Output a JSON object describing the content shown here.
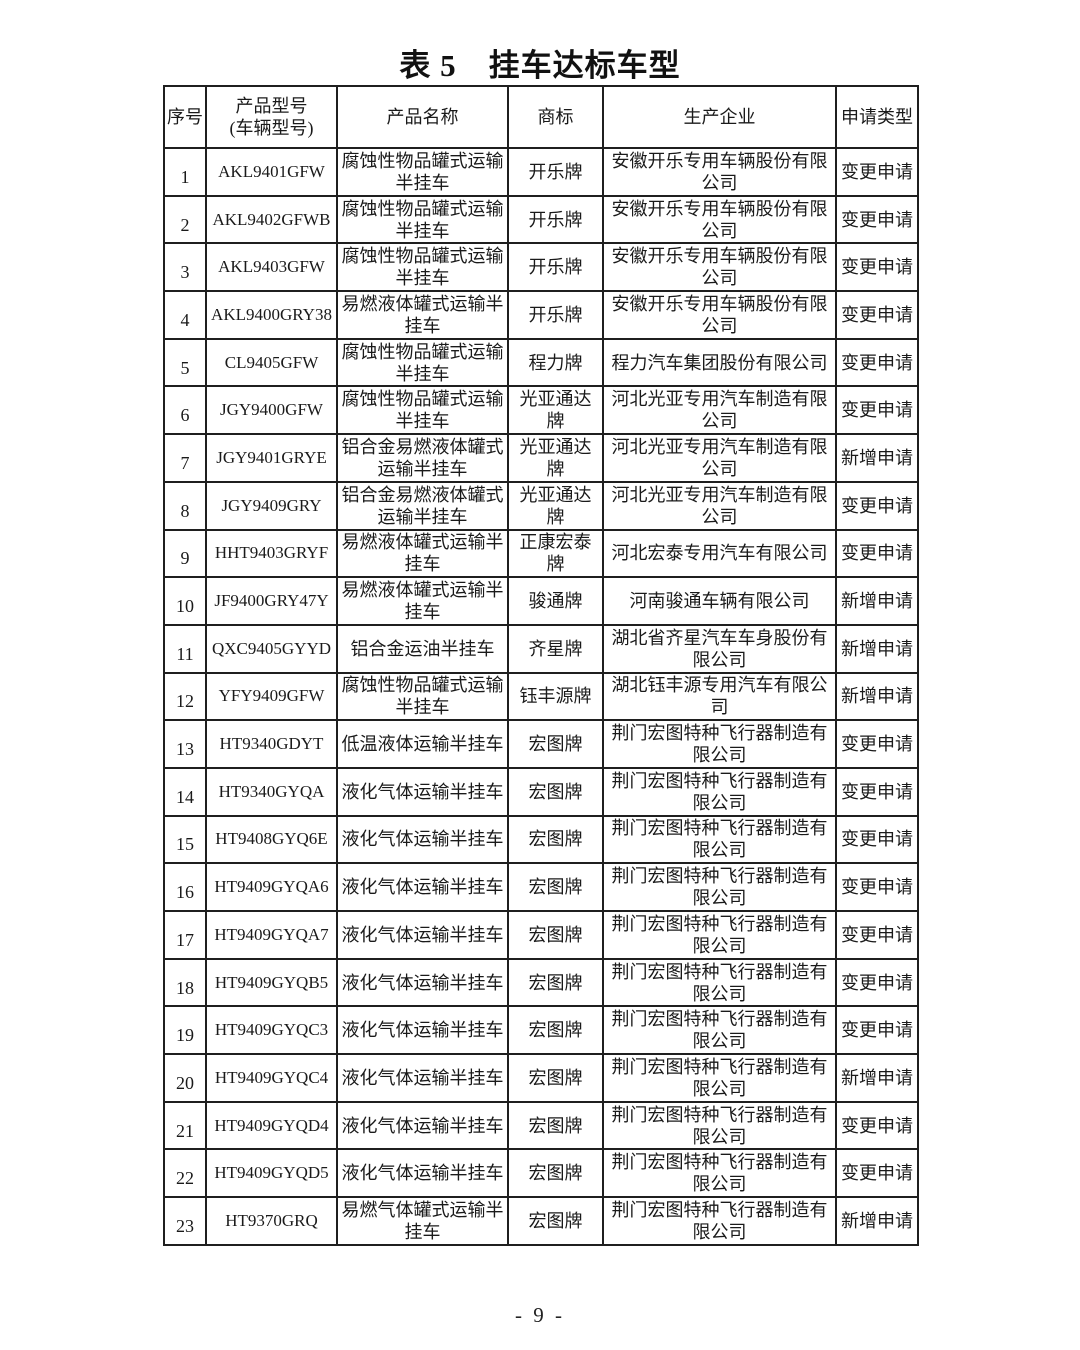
{
  "document": {
    "title": "表 5　挂车达标车型",
    "page_number": "- 9 -"
  },
  "table": {
    "headers": [
      "序号",
      "产品型号\n(车辆型号)",
      "产品名称",
      "商标",
      "生产企业",
      "申请类型"
    ],
    "rows": [
      {
        "no": "1",
        "model": "AKL9401GFW",
        "name": "腐蚀性物品罐式运输半挂车",
        "brand": "开乐牌",
        "manufacturer": "安徽开乐专用车辆股份有限公司",
        "apply_type": "变更申请"
      },
      {
        "no": "2",
        "model": "AKL9402GFWB",
        "name": "腐蚀性物品罐式运输半挂车",
        "brand": "开乐牌",
        "manufacturer": "安徽开乐专用车辆股份有限公司",
        "apply_type": "变更申请"
      },
      {
        "no": "3",
        "model": "AKL9403GFW",
        "name": "腐蚀性物品罐式运输半挂车",
        "brand": "开乐牌",
        "manufacturer": "安徽开乐专用车辆股份有限公司",
        "apply_type": "变更申请"
      },
      {
        "no": "4",
        "model": "AKL9400GRY38",
        "name": "易燃液体罐式运输半挂车",
        "brand": "开乐牌",
        "manufacturer": "安徽开乐专用车辆股份有限公司",
        "apply_type": "变更申请"
      },
      {
        "no": "5",
        "model": "CL9405GFW",
        "name": "腐蚀性物品罐式运输半挂车",
        "brand": "程力牌",
        "manufacturer": "程力汽车集团股份有限公司",
        "apply_type": "变更申请"
      },
      {
        "no": "6",
        "model": "JGY9400GFW",
        "name": "腐蚀性物品罐式运输半挂车",
        "brand": "光亚通达牌",
        "manufacturer": "河北光亚专用汽车制造有限公司",
        "apply_type": "变更申请"
      },
      {
        "no": "7",
        "model": "JGY9401GRYE",
        "name": "铝合金易燃液体罐式运输半挂车",
        "brand": "光亚通达牌",
        "manufacturer": "河北光亚专用汽车制造有限公司",
        "apply_type": "新增申请"
      },
      {
        "no": "8",
        "model": "JGY9409GRY",
        "name": "铝合金易燃液体罐式运输半挂车",
        "brand": "光亚通达牌",
        "manufacturer": "河北光亚专用汽车制造有限公司",
        "apply_type": "变更申请"
      },
      {
        "no": "9",
        "model": "HHT9403GRYF",
        "name": "易燃液体罐式运输半挂车",
        "brand": "正康宏泰牌",
        "manufacturer": "河北宏泰专用汽车有限公司",
        "apply_type": "变更申请"
      },
      {
        "no": "10",
        "model": "JF9400GRY47Y",
        "name": "易燃液体罐式运输半挂车",
        "brand": "骏通牌",
        "manufacturer": "河南骏通车辆有限公司",
        "apply_type": "新增申请"
      },
      {
        "no": "11",
        "model": "QXC9405GYYD",
        "name": "铝合金运油半挂车",
        "brand": "齐星牌",
        "manufacturer": "湖北省齐星汽车车身股份有限公司",
        "apply_type": "新增申请"
      },
      {
        "no": "12",
        "model": "YFY9409GFW",
        "name": "腐蚀性物品罐式运输半挂车",
        "brand": "钰丰源牌",
        "manufacturer": "湖北钰丰源专用汽车有限公司",
        "apply_type": "新增申请"
      },
      {
        "no": "13",
        "model": "HT9340GDYT",
        "name": "低温液体运输半挂车",
        "brand": "宏图牌",
        "manufacturer": "荆门宏图特种飞行器制造有限公司",
        "apply_type": "变更申请"
      },
      {
        "no": "14",
        "model": "HT9340GYQA",
        "name": "液化气体运输半挂车",
        "brand": "宏图牌",
        "manufacturer": "荆门宏图特种飞行器制造有限公司",
        "apply_type": "变更申请"
      },
      {
        "no": "15",
        "model": "HT9408GYQ6E",
        "name": "液化气体运输半挂车",
        "brand": "宏图牌",
        "manufacturer": "荆门宏图特种飞行器制造有限公司",
        "apply_type": "变更申请"
      },
      {
        "no": "16",
        "model": "HT9409GYQA6",
        "name": "液化气体运输半挂车",
        "brand": "宏图牌",
        "manufacturer": "荆门宏图特种飞行器制造有限公司",
        "apply_type": "变更申请"
      },
      {
        "no": "17",
        "model": "HT9409GYQA7",
        "name": "液化气体运输半挂车",
        "brand": "宏图牌",
        "manufacturer": "荆门宏图特种飞行器制造有限公司",
        "apply_type": "变更申请"
      },
      {
        "no": "18",
        "model": "HT9409GYQB5",
        "name": "液化气体运输半挂车",
        "brand": "宏图牌",
        "manufacturer": "荆门宏图特种飞行器制造有限公司",
        "apply_type": "变更申请"
      },
      {
        "no": "19",
        "model": "HT9409GYQC3",
        "name": "液化气体运输半挂车",
        "brand": "宏图牌",
        "manufacturer": "荆门宏图特种飞行器制造有限公司",
        "apply_type": "变更申请"
      },
      {
        "no": "20",
        "model": "HT9409GYQC4",
        "name": "液化气体运输半挂车",
        "brand": "宏图牌",
        "manufacturer": "荆门宏图特种飞行器制造有限公司",
        "apply_type": "新增申请"
      },
      {
        "no": "21",
        "model": "HT9409GYQD4",
        "name": "液化气体运输半挂车",
        "brand": "宏图牌",
        "manufacturer": "荆门宏图特种飞行器制造有限公司",
        "apply_type": "变更申请"
      },
      {
        "no": "22",
        "model": "HT9409GYQD5",
        "name": "液化气体运输半挂车",
        "brand": "宏图牌",
        "manufacturer": "荆门宏图特种飞行器制造有限公司",
        "apply_type": "变更申请"
      },
      {
        "no": "23",
        "model": "HT9370GRQ",
        "name": "易燃气体罐式运输半挂车",
        "brand": "宏图牌",
        "manufacturer": "荆门宏图特种飞行器制造有限公司",
        "apply_type": "新增申请"
      }
    ]
  },
  "footer": {
    "page_number": "- 9 -"
  },
  "colors": {
    "text": "#1a1a1a",
    "border": "#1f1f1f",
    "background": "#ffffff"
  }
}
